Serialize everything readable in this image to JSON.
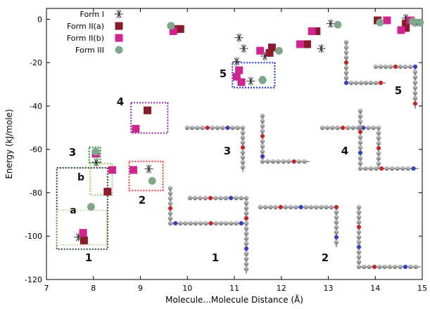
{
  "chart_data": {
    "type": "scatter",
    "xlabel": "Molecule...Molecule Distance (Å)",
    "ylabel": "Energy (kJ/mole)",
    "xlim": [
      7,
      15
    ],
    "ylim": [
      -120,
      5
    ],
    "x_ticks": [
      "7",
      "8",
      "9",
      "10",
      "11",
      "12",
      "13",
      "14",
      "15"
    ],
    "y_ticks": [
      "0",
      "-20",
      "-40",
      "-60",
      "-80",
      "-100",
      "-120"
    ],
    "legend_position": "top-left",
    "series": [
      {
        "name": "Form I",
        "marker": "asterisk",
        "color": "#2b2b2b",
        "points": [
          [
            7.68,
            -100.5
          ],
          [
            8.06,
            -66
          ],
          [
            9.18,
            -69
          ],
          [
            11.1,
            -8.5
          ],
          [
            11.2,
            -13.5
          ],
          [
            11.05,
            -19.5
          ],
          [
            11.35,
            -28.5
          ],
          [
            11.6,
            -28
          ],
          [
            11.65,
            -17
          ],
          [
            12.85,
            -13.5
          ],
          [
            13.05,
            -2
          ],
          [
            14.65,
            0.5
          ],
          [
            14.85,
            -1.5
          ]
        ]
      },
      {
        "name": "Form II(a)",
        "marker": "square",
        "color": "#8b1a2b",
        "points": [
          [
            7.8,
            -102
          ],
          [
            8.3,
            -79.5
          ],
          [
            9.15,
            -42
          ],
          [
            9.75,
            -4.5
          ],
          [
            9.85,
            -4.5
          ],
          [
            11.75,
            -15.5
          ],
          [
            11.8,
            -13
          ],
          [
            12.55,
            -11.5
          ],
          [
            12.75,
            -5.5
          ],
          [
            14.05,
            -0.5
          ],
          [
            14.65,
            -2
          ],
          [
            14.65,
            -4
          ]
        ]
      },
      {
        "name": "Form II(b)",
        "marker": "square",
        "color": "#d0258f",
        "points": [
          [
            7.78,
            -98.5
          ],
          [
            8.05,
            -62
          ],
          [
            8.4,
            -69.5
          ],
          [
            8.85,
            -69.5
          ],
          [
            8.9,
            -50.5
          ],
          [
            9.7,
            -5.5
          ],
          [
            11.05,
            -26.5
          ],
          [
            11.1,
            -23.5
          ],
          [
            11.15,
            -29
          ],
          [
            11.55,
            -14.5
          ],
          [
            12.4,
            -11.5
          ],
          [
            12.65,
            -5.5
          ],
          [
            14.25,
            -0.5
          ],
          [
            14.55,
            -5
          ],
          [
            14.75,
            -0.5
          ]
        ]
      },
      {
        "name": "Form III",
        "marker": "circle",
        "color": "#7fa88a",
        "points": [
          [
            7.95,
            -86.5
          ],
          [
            8.05,
            -61
          ],
          [
            9.25,
            -74.5
          ],
          [
            9.65,
            -3
          ],
          [
            11.6,
            -28
          ],
          [
            11.95,
            -14.5
          ],
          [
            13.2,
            -2.5
          ],
          [
            14.1,
            -1.5
          ],
          [
            14.8,
            -1
          ],
          [
            14.95,
            -1.5
          ]
        ]
      }
    ],
    "boxes": [
      {
        "label": "1",
        "color": "#1f3b2f"
      },
      {
        "label": "a",
        "color": "#c9dca8"
      },
      {
        "label": "b",
        "color": "#8cd06a"
      },
      {
        "label": "3",
        "color": "#1e8c1e"
      },
      {
        "label": "2",
        "color": "#e0393e"
      },
      {
        "label": "4",
        "color": "#8e2a9e"
      },
      {
        "label": "5",
        "color": "#1f2ed6"
      }
    ],
    "structure_labels": [
      "1",
      "2",
      "3",
      "4",
      "5"
    ]
  }
}
